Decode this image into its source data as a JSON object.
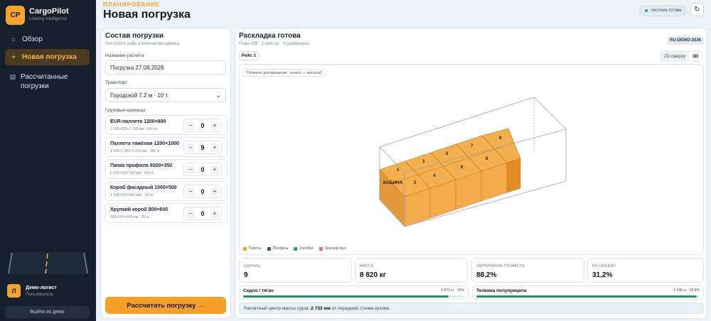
{
  "app": {
    "logo": "CP",
    "name": "CargoPilot",
    "tagline": "Loading intelligence"
  },
  "sidebar": {
    "items": [
      {
        "icon": "home-icon",
        "glyph": "⌂",
        "label": "Обзор",
        "active": false
      },
      {
        "icon": "plus-icon",
        "glyph": "+",
        "label": "Новая погрузка",
        "active": true
      },
      {
        "icon": "list-icon",
        "glyph": "▤",
        "label": "Рассчитанные погрузки",
        "active": false
      }
    ],
    "user": {
      "initial": "Л",
      "name": "Демо-логист",
      "role": "Пользователь"
    },
    "logout_label": "Выйти из демо"
  },
  "header": {
    "eyebrow": "ПЛАНИРОВАНИЕ",
    "title": "Новая погрузка",
    "status": "система готова",
    "refresh_glyph": "↻"
  },
  "composition": {
    "title": "Состав погрузки",
    "subtitle": "Настройте рейс и количество единиц",
    "calc_name_label": "Название расчёта",
    "calc_name_value": "Погрузка 27.08.2026",
    "transport_label": "Транспорт",
    "transport_value": "Городской 7.2 м · 10 т",
    "units_label": "Грузовые единицы",
    "units": [
      {
        "name": "EUR-паллета 1200×800",
        "dims": "1 200×800×1 100 мм · 650 кг",
        "qty": "0"
      },
      {
        "name": "Паллета тяжёлая 1200×1000",
        "dims": "1 200×1 000×1 250 мм · 980 кг",
        "qty": "9"
      },
      {
        "name": "Пачка профиля 6000×350",
        "dims": "6 000×350×300 мм · 420 кг",
        "qty": "0"
      },
      {
        "name": "Короб фасадный 1000×500",
        "dims": "1 000×500×450 мм · 110 кг",
        "qty": "0"
      },
      {
        "name": "Хрупкий короб 800×600",
        "dims": "800×600×600 мм · 85 кг",
        "qty": "0"
      }
    ],
    "calc_button": "Рассчитать погрузку →"
  },
  "layout": {
    "title": "Раскладка готова",
    "subtitle": "План #55 · 1 рейс(а) · 9 размещено",
    "plan_badge": "RU-DEMO-2026",
    "trip_tab": "Рейс 1",
    "views": [
      "2D сверху",
      "3D"
    ],
    "active_view": "3D",
    "hint": "Потяните для вращения · колесо — масштаб",
    "cab_label": "КАБИНА",
    "box_numbers": [
      "1",
      "2",
      "3",
      "4",
      "5",
      "6",
      "7",
      "8",
      "9"
    ],
    "legend": [
      {
        "label": "Палеты",
        "color": "#f0a02c"
      },
      {
        "label": "Профиль",
        "color": "#2b5f8a"
      },
      {
        "label": "Коробки",
        "color": "#2aa06a"
      },
      {
        "label": "Хрупкий груз",
        "color": "#e0705a"
      }
    ]
  },
  "stats": [
    {
      "label": "ЕДИНИЦ",
      "value": "9"
    },
    {
      "label": "МАССА",
      "value": "8 820 кг"
    },
    {
      "label": "ЗАПОЛНЕНИЕ ПО МАССЕ",
      "value": "88,2%"
    },
    {
      "label": "ПО ОБЪЁМУ",
      "value": "31,2%"
    }
  ],
  "axles": [
    {
      "name": "Седло / тягач",
      "value": "6 972 кг · 93%",
      "load_pct": 93
    },
    {
      "name": "Тележка полуприцепа",
      "value": "6 248 кг · 98.8%",
      "load_pct": 98.8
    }
  ],
  "cog": {
    "prefix": "Расчётный центр массы груза: ",
    "value": "2 733 мм",
    "suffix": " от передней стенки кузова."
  },
  "colors": {
    "accent": "#f6a028",
    "sidebar_bg": "#16202d",
    "progress": "#229264",
    "box_fill": "#f0a02c"
  }
}
